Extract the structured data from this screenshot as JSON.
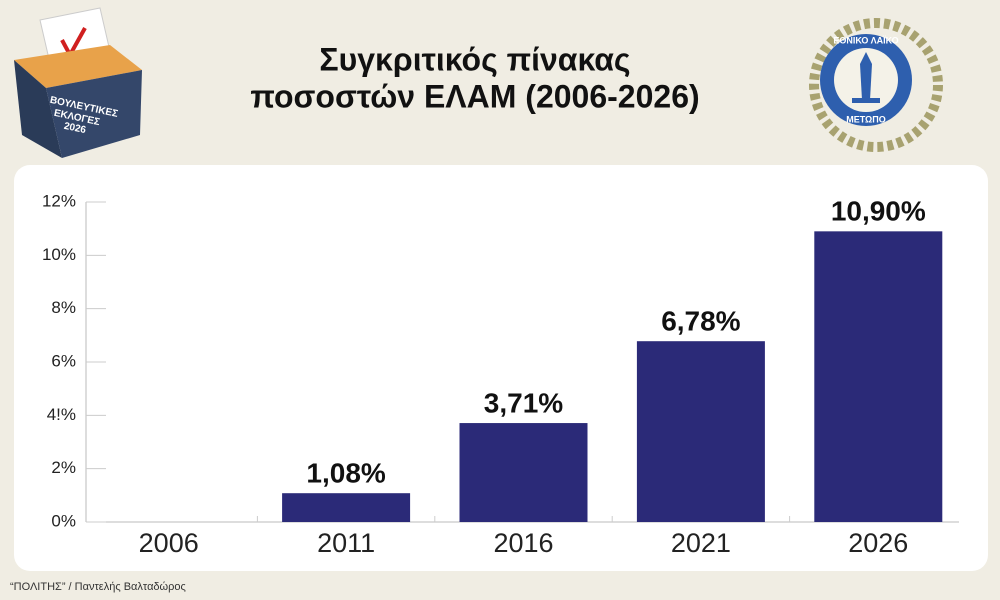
{
  "chart_data": {
    "type": "bar",
    "title": [
      "Συγκριτικός πίνακας",
      "ποσοστών ΕΛΑΜ (2006-2026)"
    ],
    "categories": [
      "2006",
      "2011",
      "2016",
      "2021",
      "2026"
    ],
    "values": [
      null,
      1.08,
      3.71,
      6.78,
      10.9
    ],
    "value_labels": [
      null,
      "1,08%",
      "3,71%",
      "6,78%",
      "10,90%"
    ],
    "color": "#2b2a78",
    "ylim": [
      0,
      12
    ],
    "yticks": [
      {
        "value": 0,
        "label": "0%"
      },
      {
        "value": 2,
        "label": "2%"
      },
      {
        "value": 4,
        "label": "4!%"
      },
      {
        "value": 6,
        "label": "6%"
      },
      {
        "value": 8,
        "label": "8%"
      },
      {
        "value": 10,
        "label": "10%"
      },
      {
        "value": 12,
        "label": "12%"
      }
    ],
    "grid": false
  },
  "source": "“ΠΟΛΙΤΗΣ” / Παντελής Βαλταδώρος",
  "ballot_box": {
    "lines": [
      "ΒΟΥΛΕΥΤΙΚΕΣ",
      "ΕΚΛΟΓΕΣ",
      "2026"
    ]
  },
  "emblem": {
    "top": "ΕΘΝΙΚΟ ΛΑΪΚΟ",
    "bottom": "ΜΕΤΩΠΟ"
  }
}
